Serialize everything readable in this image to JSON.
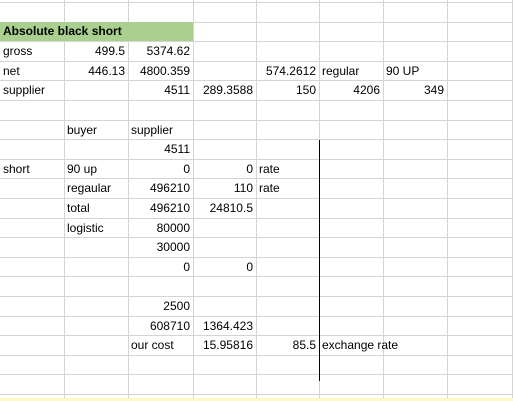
{
  "sheet": {
    "title": "Absolute black  short",
    "rows": [
      {
        "row": 3,
        "cells": [
          {
            "col": "A",
            "text": "gross",
            "align": "l"
          },
          {
            "col": "B",
            "text": "499.5",
            "align": "r"
          },
          {
            "col": "C",
            "text": "5374.62",
            "align": "r"
          }
        ]
      },
      {
        "row": 4,
        "cells": [
          {
            "col": "A",
            "text": "net",
            "align": "l"
          },
          {
            "col": "B",
            "text": "446.13",
            "align": "r"
          },
          {
            "col": "C",
            "text": "4800.359",
            "align": "r"
          },
          {
            "col": "E",
            "text": "574.2612",
            "align": "r"
          },
          {
            "col": "F",
            "text": "regular",
            "align": "l"
          },
          {
            "col": "G",
            "text": "90  UP",
            "align": "l"
          }
        ]
      },
      {
        "row": 5,
        "cells": [
          {
            "col": "A",
            "text": "supplier",
            "align": "l"
          },
          {
            "col": "C",
            "text": "4511",
            "align": "r"
          },
          {
            "col": "D",
            "text": "289.3588",
            "align": "r"
          },
          {
            "col": "E",
            "text": "150",
            "align": "r"
          },
          {
            "col": "F",
            "text": "4206",
            "align": "r"
          },
          {
            "col": "G",
            "text": "349",
            "align": "r"
          }
        ]
      },
      {
        "row": 7,
        "cells": [
          {
            "col": "B",
            "text": "buyer",
            "align": "l"
          },
          {
            "col": "C",
            "text": "supplier",
            "align": "l"
          }
        ]
      },
      {
        "row": 8,
        "cells": [
          {
            "col": "C",
            "text": "4511",
            "align": "r"
          }
        ]
      },
      {
        "row": 9,
        "cells": [
          {
            "col": "A",
            "text": "short",
            "align": "l"
          },
          {
            "col": "B",
            "text": "90 up",
            "align": "l"
          },
          {
            "col": "C",
            "text": "0",
            "align": "r"
          },
          {
            "col": "D",
            "text": "0",
            "align": "r"
          },
          {
            "col": "E",
            "text": "rate",
            "align": "l"
          }
        ]
      },
      {
        "row": 10,
        "cells": [
          {
            "col": "B",
            "text": "regaular",
            "align": "l"
          },
          {
            "col": "C",
            "text": "496210",
            "align": "r"
          },
          {
            "col": "D",
            "text": "110",
            "align": "r"
          },
          {
            "col": "E",
            "text": "rate",
            "align": "l"
          }
        ]
      },
      {
        "row": 11,
        "cells": [
          {
            "col": "B",
            "text": "total",
            "align": "l"
          },
          {
            "col": "C",
            "text": "496210",
            "align": "r"
          },
          {
            "col": "D",
            "text": "24810.5",
            "align": "r"
          }
        ]
      },
      {
        "row": 12,
        "cells": [
          {
            "col": "B",
            "text": "logistic",
            "align": "l"
          },
          {
            "col": "C",
            "text": "80000",
            "align": "r"
          }
        ]
      },
      {
        "row": 13,
        "cells": [
          {
            "col": "C",
            "text": "30000",
            "align": "r"
          }
        ]
      },
      {
        "row": 14,
        "cells": [
          {
            "col": "C",
            "text": "0",
            "align": "r"
          },
          {
            "col": "D",
            "text": "0",
            "align": "r"
          }
        ]
      },
      {
        "row": 16,
        "cells": [
          {
            "col": "C",
            "text": "2500",
            "align": "r"
          }
        ]
      },
      {
        "row": 17,
        "cells": [
          {
            "col": "C",
            "text": "608710",
            "align": "r"
          },
          {
            "col": "D",
            "text": "1364.423",
            "align": "r"
          }
        ]
      },
      {
        "row": 18,
        "cells": [
          {
            "col": "C",
            "text": "our cost",
            "align": "l"
          },
          {
            "col": "D",
            "text": "15.95816",
            "align": "r"
          },
          {
            "col": "E",
            "text": "85.5",
            "align": "r"
          },
          {
            "col": "F",
            "text": "exchange rate",
            "align": "l"
          }
        ]
      }
    ]
  },
  "colors": {
    "title_fill": "#a9d08e",
    "gridline": "#d4d4d4",
    "border": "#000000"
  }
}
